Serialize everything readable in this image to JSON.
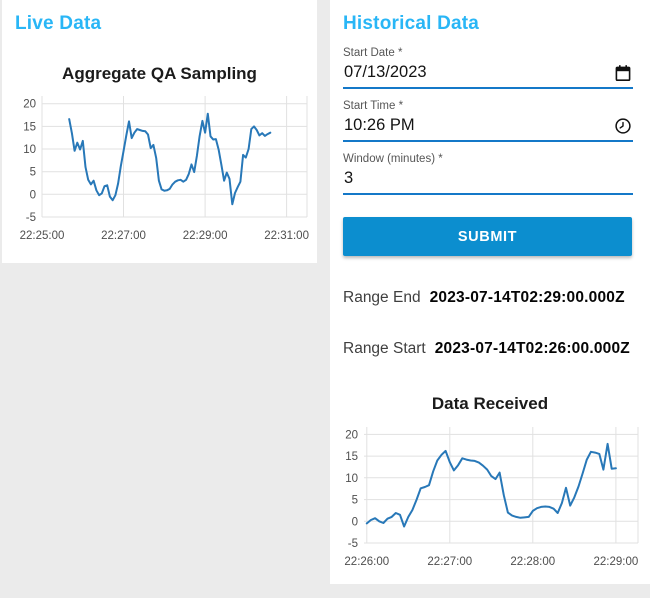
{
  "live_panel": {
    "heading": "Live Data"
  },
  "historical_panel": {
    "heading": "Historical Data",
    "fields": {
      "start_date": {
        "label": "Start Date",
        "required_marker": "*",
        "value": "07/13/2023",
        "icon": "calendar-icon"
      },
      "start_time": {
        "label": "Start Time",
        "required_marker": "*",
        "value": "10:26 PM",
        "icon": "clock-icon"
      },
      "window_minutes": {
        "label": "Window (minutes)",
        "required_marker": "*",
        "value": "3"
      }
    },
    "submit_label": "SUBMIT",
    "range_end": {
      "label": "Range End",
      "value": "2023-07-14T02:29:00.000Z"
    },
    "range_start": {
      "label": "Range Start",
      "value": "2023-07-14T02:26:00.000Z"
    }
  },
  "colors": {
    "heading_accent": "#29b6f6",
    "input_underline": "#1478c8",
    "button_blue": "#0c8ecf",
    "chart_line": "#2878b8",
    "chart_grid": "#e1e1e1",
    "page_background": "#ebebeb"
  },
  "chart_data": [
    {
      "type": "line",
      "title": "Aggregate QA Sampling",
      "xlabel": "",
      "ylabel": "",
      "x_tick_labels": [
        "22:25:00",
        "22:27:00",
        "22:29:00",
        "22:31:00"
      ],
      "x_ticks": [
        0,
        120,
        240,
        360
      ],
      "xlim": [
        0,
        390
      ],
      "y_ticks": [
        -5,
        0,
        5,
        10,
        15,
        20
      ],
      "ylim": [
        -5,
        21.7
      ],
      "grid": true,
      "legend": false,
      "line_color": "#2878b8",
      "grid_color": "#e1e1e1",
      "x_start_time": "22:25:40",
      "series_x0": 40,
      "series_dx": 4,
      "values": [
        16.6,
        13.5,
        9.6,
        11.4,
        9.9,
        11.8,
        6.0,
        3.2,
        2.2,
        3.0,
        0.9,
        -0.2,
        0.2,
        1.8,
        2.0,
        -0.5,
        -1.3,
        -0.2,
        2.4,
        6.2,
        9.5,
        13.0,
        16.1,
        12.4,
        13.6,
        14.4,
        14.2,
        14.0,
        13.9,
        13.2,
        10.2,
        10.9,
        8.0,
        3.0,
        1.1,
        0.8,
        0.9,
        1.2,
        2.2,
        2.8,
        3.1,
        3.2,
        2.8,
        3.2,
        4.5,
        6.6,
        4.9,
        8.5,
        12.8,
        16.2,
        13.6,
        17.8,
        12.8,
        12.1,
        12.2,
        9.8,
        6.5,
        3.0,
        4.8,
        3.4,
        -2.2,
        0.3,
        1.6,
        2.8,
        8.7,
        8.1,
        10.0,
        14.4,
        15.0,
        14.2,
        13.0,
        13.5,
        12.9,
        13.3,
        13.6
      ]
    },
    {
      "type": "line",
      "title": "Data Received",
      "xlabel": "",
      "ylabel": "",
      "x_tick_labels": [
        "22:26:00",
        "22:27:00",
        "22:28:00",
        "22:29:00"
      ],
      "x_ticks": [
        0,
        60,
        120,
        180
      ],
      "xlim": [
        -2,
        196
      ],
      "y_ticks": [
        -5,
        0,
        5,
        10,
        15,
        20
      ],
      "ylim": [
        -5,
        21.7
      ],
      "grid": true,
      "legend": false,
      "line_color": "#2878b8",
      "grid_color": "#e1e1e1",
      "x_start_time": "22:26:00",
      "series_x0": 0,
      "series_dx": 3,
      "values": [
        -0.5,
        0.3,
        0.7,
        0.0,
        -0.4,
        0.6,
        1.0,
        1.9,
        1.5,
        -1.2,
        1.0,
        2.6,
        5.0,
        7.6,
        7.9,
        8.3,
        11.5,
        14.0,
        15.3,
        16.2,
        13.6,
        11.7,
        12.9,
        14.5,
        14.2,
        14.0,
        13.9,
        13.5,
        12.8,
        11.9,
        10.4,
        9.7,
        11.2,
        6.0,
        2.0,
        1.3,
        1.0,
        0.8,
        0.9,
        1.0,
        2.4,
        3.0,
        3.3,
        3.4,
        3.3,
        2.9,
        1.9,
        4.2,
        7.7,
        3.6,
        5.5,
        8.0,
        11.0,
        14.2,
        16.0,
        15.8,
        15.5,
        11.9,
        17.8,
        12.1,
        12.2
      ]
    }
  ]
}
